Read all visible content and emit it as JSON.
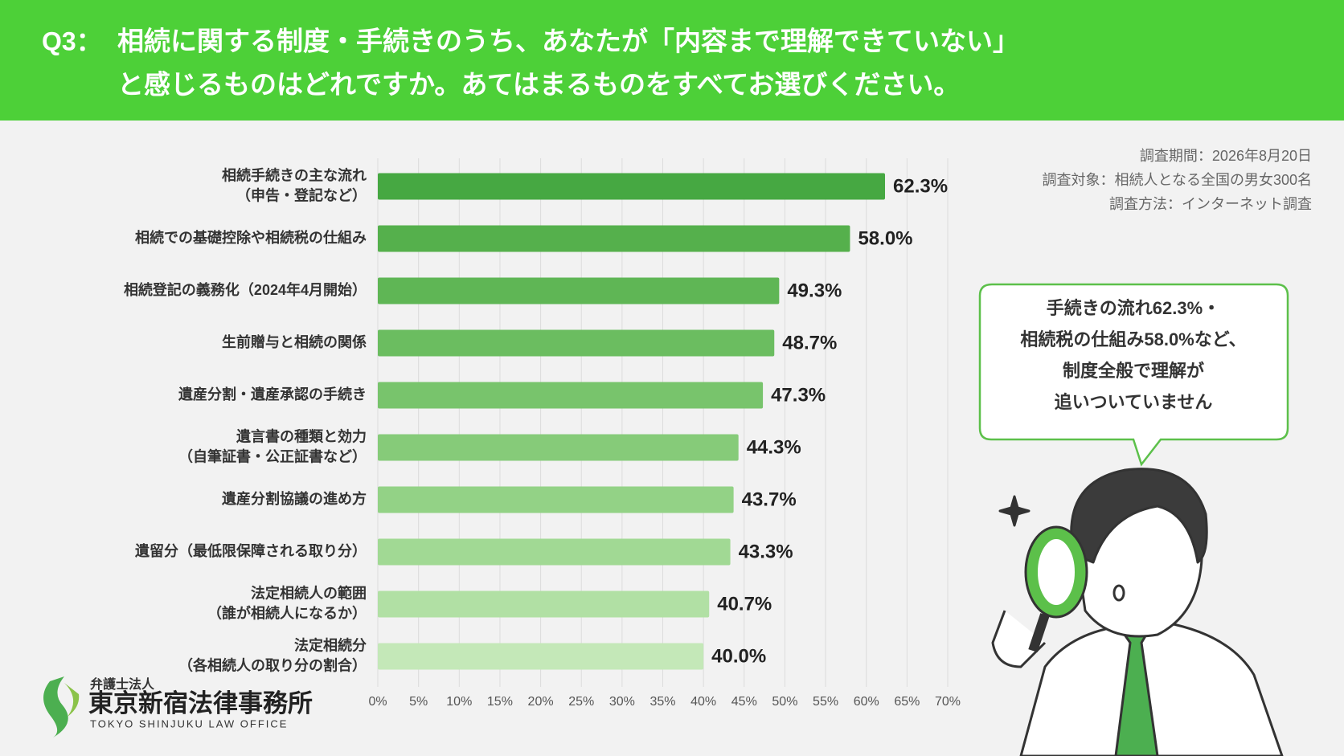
{
  "header": {
    "q_label": "Q3：",
    "title_lines": [
      "相続に関する制度・手続きのうち、あなたが「内容まで理解できていない」",
      "と感じるものはどれですか。あてはまるものをすべてお選びください。"
    ]
  },
  "chart_data": {
    "type": "hbar",
    "categories": [
      [
        "相続手続きの主な流れ",
        "（申告・登記など）"
      ],
      [
        "相続での基礎控除や相続税の仕組み"
      ],
      [
        "相続登記の義務化（2024年4月開始）"
      ],
      [
        "生前贈与と相続の関係"
      ],
      [
        "遺産分割・遺産承認の手続き"
      ],
      [
        "遺言書の種類と効力",
        "（自筆証書・公正証書など）"
      ],
      [
        "遺産分割協議の進め方"
      ],
      [
        "遺留分（最低限保障される取り分）"
      ],
      [
        "法定相続人の範囲",
        "（誰が相続人になるか）"
      ],
      [
        "法定相続分",
        "（各相続人の取り分の割合）"
      ]
    ],
    "values": [
      62.3,
      58.0,
      49.3,
      48.7,
      47.3,
      44.3,
      43.7,
      43.3,
      40.7,
      40.0
    ],
    "value_labels": [
      "62.3%",
      "58.0%",
      "49.3%",
      "48.7%",
      "47.3%",
      "44.3%",
      "43.7%",
      "43.3%",
      "40.7%",
      "40.0%"
    ],
    "colors": [
      "#46a842",
      "#55b04c",
      "#5fb655",
      "#6bbd60",
      "#78c46c",
      "#86cb79",
      "#93d286",
      "#a1d994",
      "#b1e0a4",
      "#c4e8b8"
    ],
    "xlim": [
      0,
      70
    ],
    "xticks": [
      {
        "value": 0,
        "label": "0%"
      },
      {
        "value": 5,
        "label": "5%"
      },
      {
        "value": 10,
        "label": "10%"
      },
      {
        "value": 15,
        "label": "15%"
      },
      {
        "value": 20,
        "label": "20%"
      },
      {
        "value": 25,
        "label": "25%"
      },
      {
        "value": 30,
        "label": "30%"
      },
      {
        "value": 35,
        "label": "35%"
      },
      {
        "value": 40,
        "label": "40%"
      },
      {
        "value": 45,
        "label": "45%"
      },
      {
        "value": 50,
        "label": "50%"
      },
      {
        "value": 55,
        "label": "55%"
      },
      {
        "value": 60,
        "label": "60%"
      },
      {
        "value": 65,
        "label": "65%"
      },
      {
        "value": 70,
        "label": "70%"
      }
    ],
    "grid": true
  },
  "survey_notes": [
    "調査期間：2026年8月20日",
    "調査対象：相続人となる全国の男女300名",
    "調査方法：インターネット調査"
  ],
  "callout": {
    "lines": [
      "手続きの流れ62.3%・",
      "相続税の仕組み58.0%など、",
      "制度全般で理解が",
      "追いついていません"
    ]
  },
  "logo": {
    "sub": "弁護士法人",
    "name": "東京新宿法律事務所",
    "english": "TOKYO SHINJUKU LAW OFFICE"
  }
}
